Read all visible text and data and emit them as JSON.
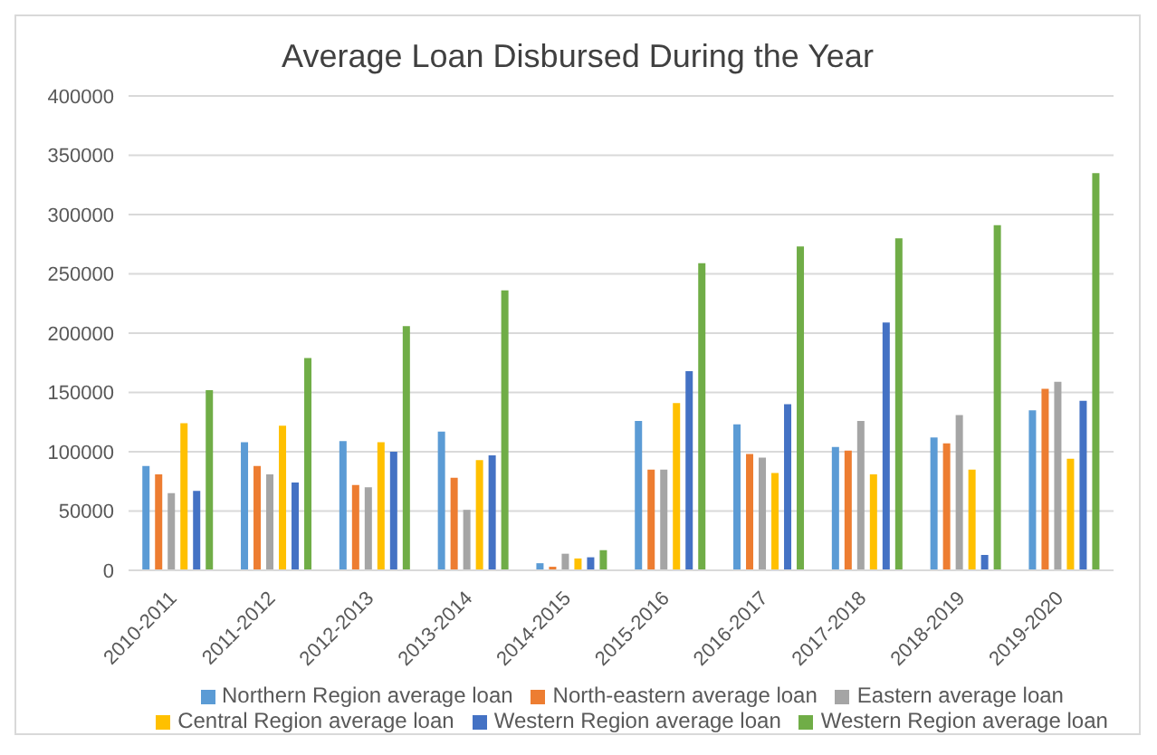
{
  "chart_data": {
    "type": "bar",
    "title": "Average Loan Disbursed During the Year",
    "categories": [
      "2010-2011",
      "2011-2012",
      "2012-2013",
      "2013-2014",
      "2014-2015",
      "2015-2016",
      "2016-2017",
      "2017-2018",
      "2018-2019",
      "2019-2020"
    ],
    "series": [
      {
        "name": "Northern Region average loan",
        "color": "#5b9bd5",
        "values": [
          88000,
          108000,
          109000,
          117000,
          6000,
          126000,
          123000,
          104000,
          112000,
          135000
        ]
      },
      {
        "name": "North-eastern average loan",
        "color": "#ed7d31",
        "values": [
          81000,
          88000,
          72000,
          78000,
          3000,
          85000,
          98000,
          101000,
          107000,
          153000
        ]
      },
      {
        "name": "Eastern average loan",
        "color": "#a5a5a5",
        "values": [
          65000,
          81000,
          70000,
          51000,
          14000,
          85000,
          95000,
          126000,
          131000,
          159000
        ]
      },
      {
        "name": "Central Region average loan",
        "color": "#ffc000",
        "values": [
          124000,
          122000,
          108000,
          93000,
          10000,
          141000,
          82000,
          81000,
          85000,
          94000
        ]
      },
      {
        "name": "Western Region average loan",
        "color": "#4472c4",
        "values": [
          67000,
          74000,
          100000,
          97000,
          11000,
          168000,
          140000,
          209000,
          13000,
          143000
        ]
      },
      {
        "name": "Western Region average loan",
        "color": "#70ad47",
        "values": [
          152000,
          179000,
          206000,
          236000,
          17000,
          259000,
          273000,
          280000,
          291000,
          335000
        ]
      }
    ],
    "ylim": [
      0,
      400000
    ],
    "yticks": [
      0,
      50000,
      100000,
      150000,
      200000,
      250000,
      300000,
      350000,
      400000
    ],
    "grid": "y",
    "legend": "bottom"
  }
}
